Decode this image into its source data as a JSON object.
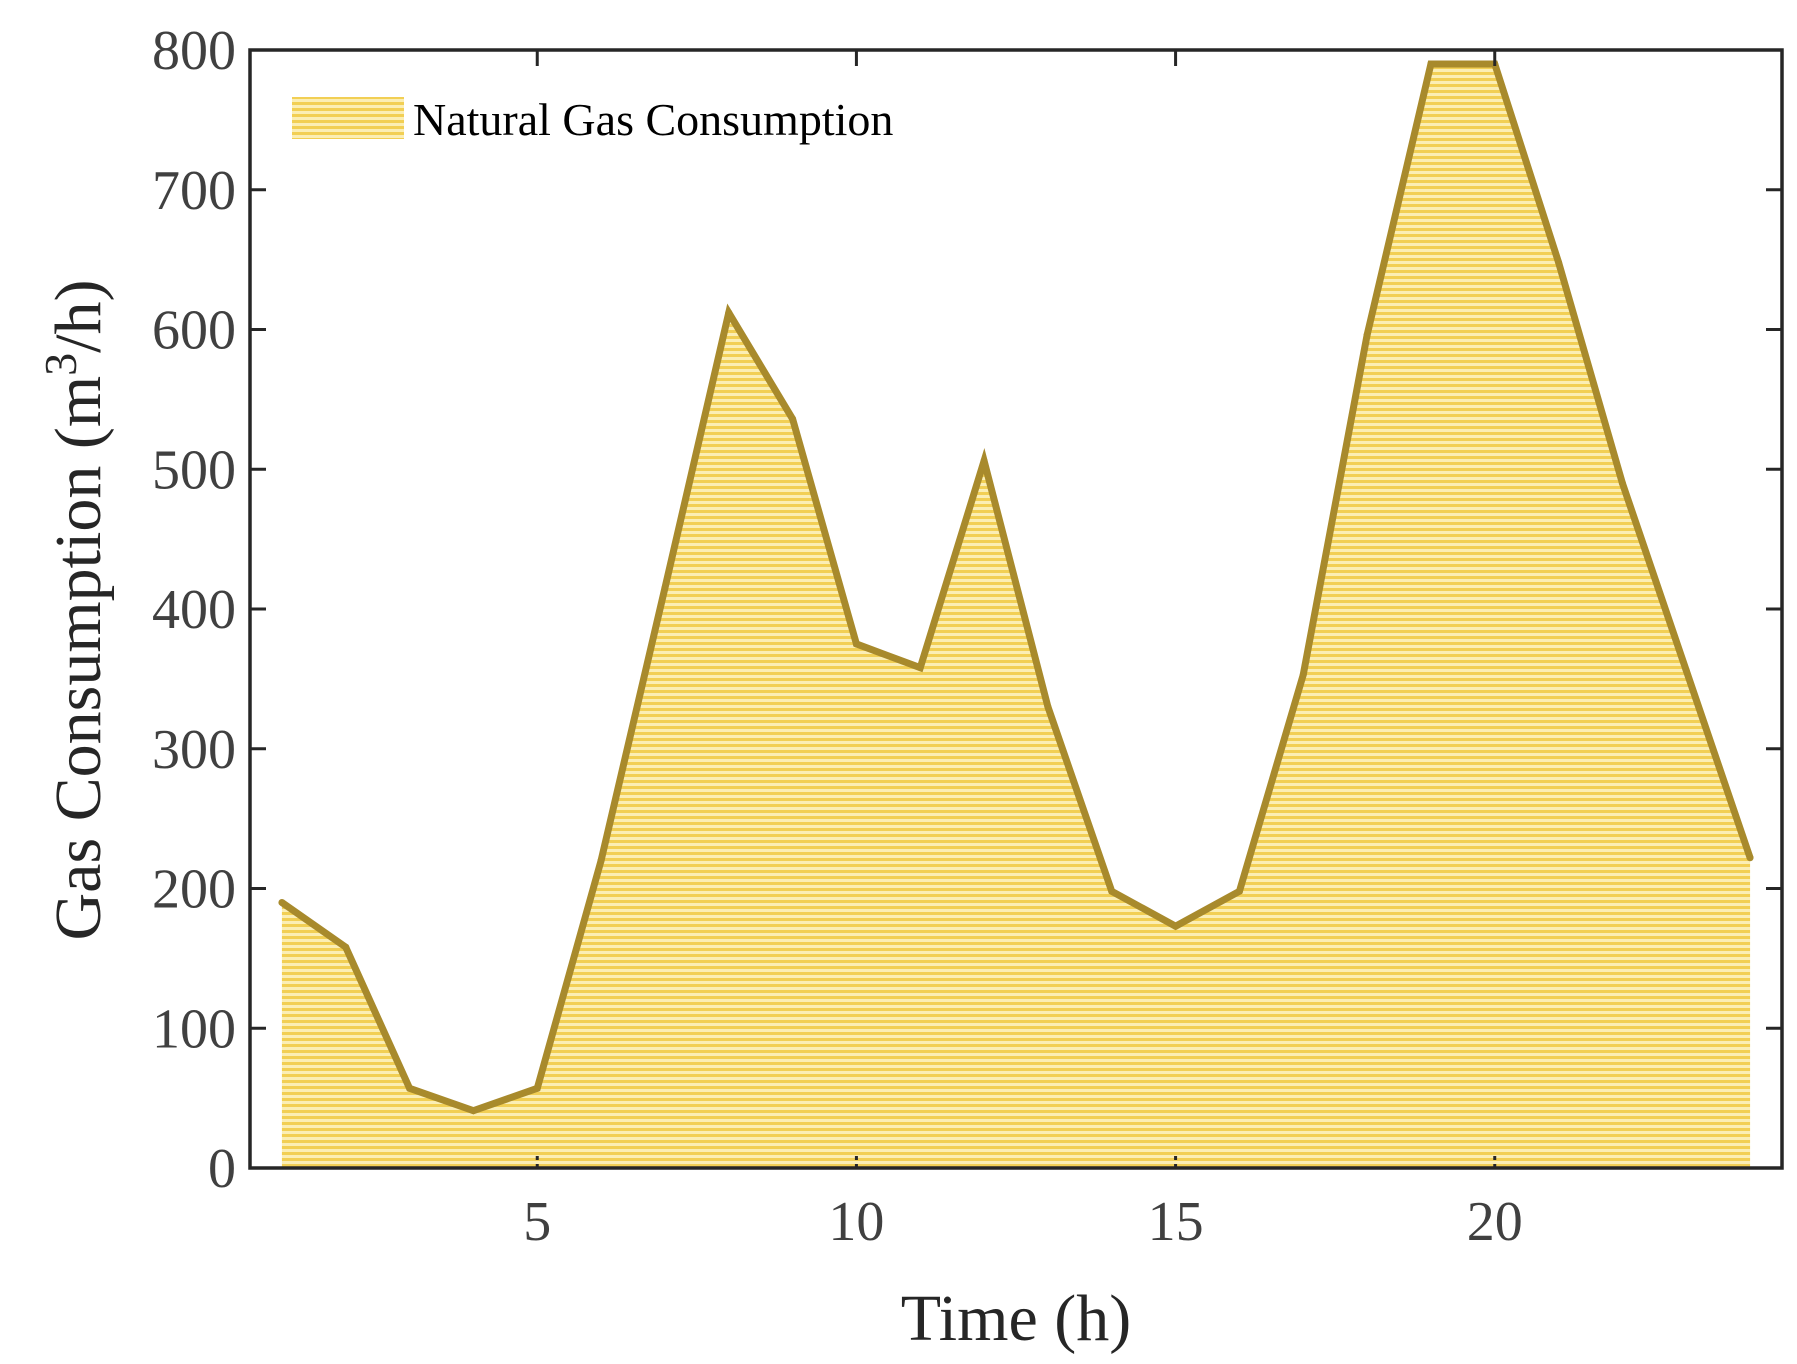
{
  "chart_data": {
    "type": "area",
    "title": "",
    "xlabel": "Time (h)",
    "ylabel_parts": {
      "prefix": "Gas Consumption (m",
      "superscript": "3",
      "suffix": "/h)"
    },
    "xlim": [
      0.5,
      24.5
    ],
    "ylim": [
      0,
      800
    ],
    "xticks": [
      5,
      10,
      15,
      20
    ],
    "xtick_labels": [
      "5",
      "10",
      "15",
      "20"
    ],
    "yticks": [
      0,
      100,
      200,
      300,
      400,
      500,
      600,
      700,
      800
    ],
    "ytick_labels": [
      "0",
      "100",
      "200",
      "300",
      "400",
      "500",
      "600",
      "700",
      "800"
    ],
    "grid": false,
    "legend_position": "top-left",
    "series": [
      {
        "name": "Natural Gas Consumption",
        "x": [
          1,
          2,
          3,
          4,
          5,
          6,
          7,
          8,
          9,
          10,
          11,
          12,
          13,
          14,
          15,
          16,
          17,
          18,
          19,
          20,
          21,
          22,
          23,
          24
        ],
        "values": [
          190,
          158,
          57,
          41,
          57,
          220,
          415,
          612,
          536,
          375,
          358,
          506,
          330,
          198,
          173,
          198,
          353,
          596,
          790,
          790,
          648,
          490,
          356,
          222
        ],
        "line_color": "#a88a2c",
        "fill_color": "#f2cf54"
      }
    ]
  }
}
